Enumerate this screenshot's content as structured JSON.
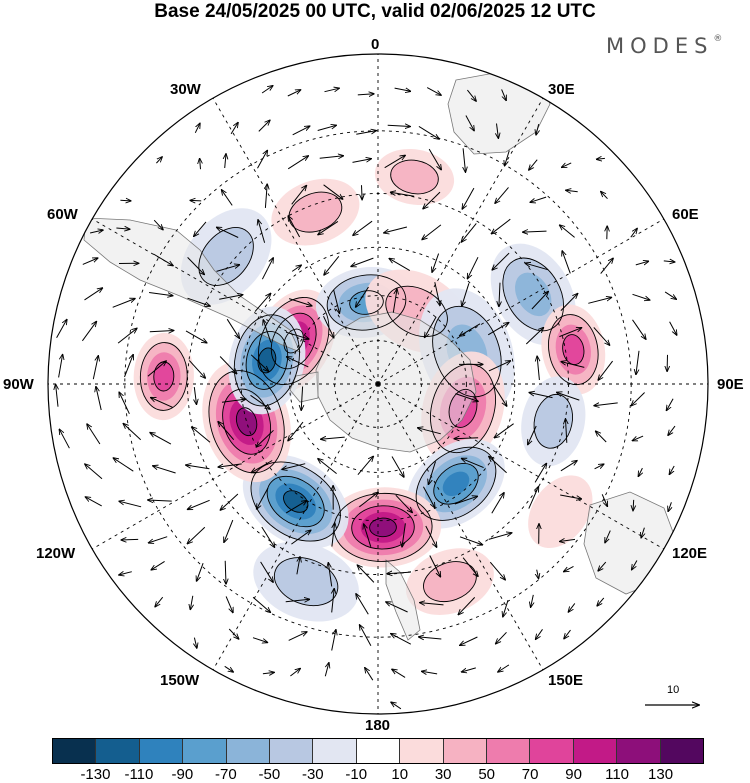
{
  "header": {
    "title": "Base 24/05/2025 00 UTC, valid 02/06/2025 12 UTC",
    "brand": "MODES"
  },
  "map": {
    "projection": "south polar stereographic",
    "longitude_labels": [
      "0",
      "30E",
      "60E",
      "90E",
      "120E",
      "150E",
      "180",
      "150W",
      "120W",
      "90W",
      "60W",
      "30W"
    ],
    "reference_vector_label": "10",
    "palette": {
      "ocean_fill": "#ffffff",
      "land_fill": "#e8e8e8",
      "antarctica": "#e4e4e4",
      "grid_line": "#000000"
    }
  },
  "colorbar": {
    "colors": [
      "#08304f",
      "#145e8f",
      "#2f82bd",
      "#5a9fce",
      "#8bb4d9",
      "#b8c8e2",
      "#e2e6f2",
      "#ffffff",
      "#fbdcdc",
      "#f6b2c2",
      "#ee7cad",
      "#e0449b",
      "#c21a87",
      "#8d0f7a",
      "#53075f"
    ],
    "tick_labels": [
      "-130",
      "-110",
      "-90",
      "-70",
      "-50",
      "-30",
      "-10",
      "10",
      "30",
      "50",
      "70",
      "90",
      "110",
      "130"
    ]
  },
  "anomaly_centers": [
    {
      "lon": -63,
      "lat": -58,
      "value": 105,
      "rel": 0.3
    },
    {
      "lon": -8,
      "lat": -62,
      "value": -60,
      "rel": 0.28
    },
    {
      "lon": 28,
      "lat": -62,
      "value": 35,
      "rel": 0.3
    },
    {
      "lon": 60,
      "lat": -33,
      "value": -55,
      "rel": 0.3
    },
    {
      "lon": 80,
      "lat": -28,
      "value": 65,
      "rel": 0.25
    },
    {
      "lon": 70,
      "lat": -58,
      "value": -50,
      "rel": 0.36
    },
    {
      "lon": 106,
      "lat": -60,
      "value": 75,
      "rel": 0.32
    },
    {
      "lon": 102,
      "lat": -33,
      "value": -20,
      "rel": 0.25
    },
    {
      "lon": 142,
      "lat": -48,
      "value": -95,
      "rel": 0.3
    },
    {
      "lon": 178,
      "lat": -43,
      "value": 110,
      "rel": 0.32
    },
    {
      "lon": -145,
      "lat": -43,
      "value": -105,
      "rel": 0.32
    },
    {
      "lon": -106,
      "lat": -45,
      "value": 110,
      "rel": 0.34
    },
    {
      "lon": -78,
      "lat": -52,
      "value": -100,
      "rel": 0.3
    },
    {
      "lon": -88,
      "lat": -24,
      "value": 60,
      "rel": 0.24
    },
    {
      "lon": -50,
      "lat": -28,
      "value": -30,
      "rel": 0.3
    },
    {
      "lon": -20,
      "lat": -32,
      "value": 35,
      "rel": 0.25
    },
    {
      "lon": 10,
      "lat": -25,
      "value": 25,
      "rel": 0.22
    },
    {
      "lon": -160,
      "lat": -25,
      "value": -25,
      "rel": 0.3
    },
    {
      "lon": 160,
      "lat": -25,
      "value": 20,
      "rel": 0.25
    },
    {
      "lon": 125,
      "lat": -22,
      "value": 15,
      "rel": 0.22
    }
  ]
}
